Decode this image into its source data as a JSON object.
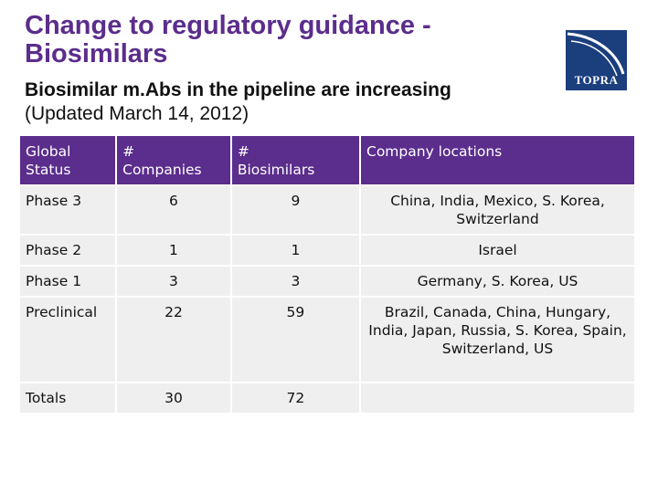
{
  "title": {
    "line1": "Change to regulatory guidance -",
    "line2": "Biosimilars"
  },
  "subtitle": {
    "bold": "Biosimilar m.Abs in the pipeline are increasing",
    "date": "(Updated March 14, 2012)"
  },
  "logo": {
    "text": "TOPRA"
  },
  "colors": {
    "header_bg": "#5b2d8c",
    "title": "#5b2d8c",
    "cell_bg": "#efefef",
    "logo_bg": "#1b3e7d"
  },
  "table": {
    "headers": {
      "status_l1": "Global",
      "status_l2": "Status",
      "companies_l1": "#",
      "companies_l2": "Companies",
      "biosimilars_l1": "#",
      "biosimilars_l2": "Biosimilars",
      "locations": "Company locations"
    },
    "rows": [
      {
        "status": "Phase 3",
        "companies": "6",
        "biosimilars": "9",
        "locations": "China, India, Mexico, S. Korea, Switzerland"
      },
      {
        "status": "Phase 2",
        "companies": "1",
        "biosimilars": "1",
        "locations": "Israel"
      },
      {
        "status": "Phase 1",
        "companies": "3",
        "biosimilars": "3",
        "locations": "Germany, S. Korea, US"
      },
      {
        "status": "Preclinical",
        "companies": "22",
        "biosimilars": "59",
        "locations": "Brazil, Canada, China, Hungary, India, Japan, Russia, S. Korea, Spain, Switzerland, US"
      },
      {
        "status": "Totals",
        "companies": "30",
        "biosimilars": "72",
        "locations": ""
      }
    ]
  }
}
